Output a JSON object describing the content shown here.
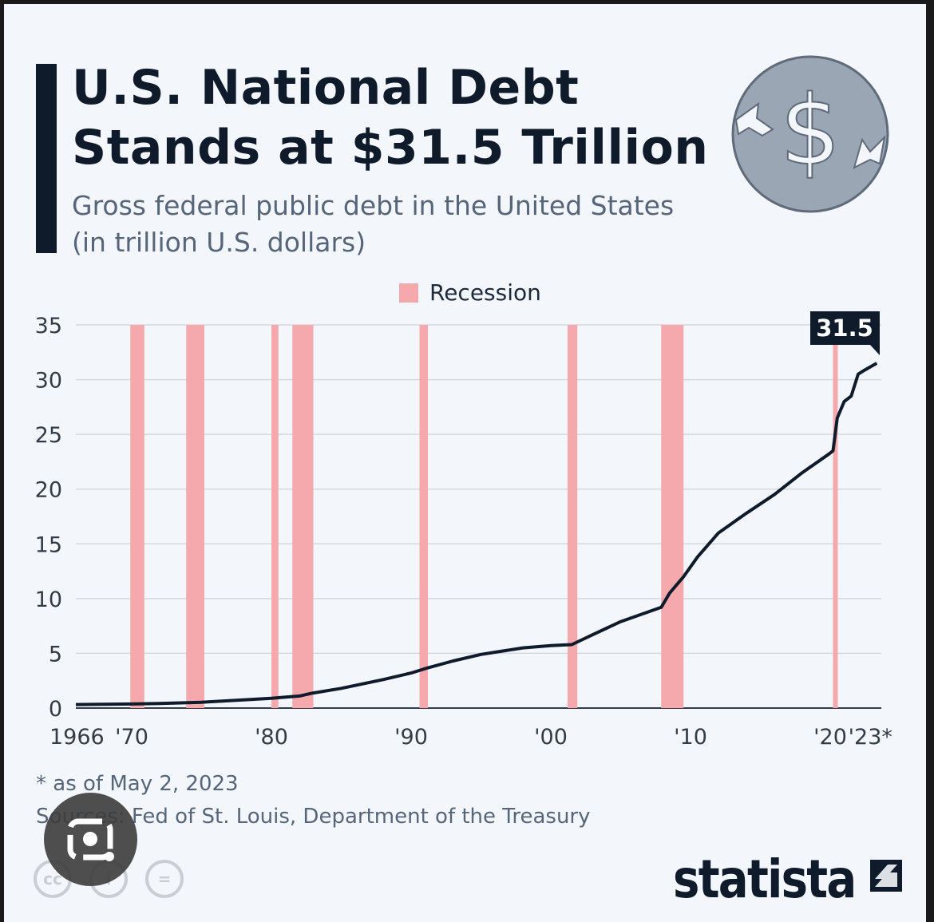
{
  "header": {
    "title_line1": "U.S. National Debt",
    "title_line2": "Stands at $31.5 Trillion",
    "subtitle_line1": "Gross federal public debt in the United States",
    "subtitle_line2": "(in trillion U.S. dollars)"
  },
  "icon": "dollar-coin-icon",
  "footer": {
    "note": "* as of May 2, 2023",
    "sources": "Sources: Fed of St. Louis, Department of the Treasury",
    "logo": "statista",
    "license_icons": [
      "cc",
      "i",
      "="
    ]
  },
  "colors": {
    "line": "#0f1a2a",
    "recession": "#f5a9ad",
    "grid": "#d4d9e0",
    "background": "#f3f6fa"
  },
  "chart_data": {
    "type": "line",
    "title": "U.S. National Debt Stands at $31.5 Trillion",
    "ylabel": "trillion U.S. dollars",
    "ylim": [
      0,
      35
    ],
    "xlim": [
      1966,
      2023.33
    ],
    "yticks": [
      "0",
      "5",
      "10",
      "15",
      "20",
      "25",
      "30",
      "35"
    ],
    "xticks": [
      {
        "year": 1966,
        "label": "1966"
      },
      {
        "year": 1970,
        "label": "'70"
      },
      {
        "year": 1980,
        "label": "'80"
      },
      {
        "year": 1990,
        "label": "'90"
      },
      {
        "year": 2000,
        "label": "'00"
      },
      {
        "year": 2010,
        "label": "'10"
      },
      {
        "year": 2020,
        "label": "'20"
      },
      {
        "year": 2023.33,
        "label": "'23*"
      }
    ],
    "legend": [
      {
        "label": "Recession",
        "position": "top-center"
      }
    ],
    "recessions": [
      [
        1969.9,
        1970.9
      ],
      [
        1973.9,
        1975.2
      ],
      [
        1980.0,
        1980.5
      ],
      [
        1981.5,
        1983.0
      ],
      [
        1990.6,
        1991.2
      ],
      [
        2001.2,
        2001.9
      ],
      [
        2007.9,
        2009.5
      ],
      [
        2020.2,
        2020.4
      ]
    ],
    "series": [
      {
        "name": "Gross federal public debt",
        "x": [
          1966,
          1968,
          1970,
          1972,
          1975,
          1978,
          1980,
          1982,
          1983,
          1985,
          1988,
          1990,
          1991,
          1993,
          1995,
          1998,
          2000,
          2001.5,
          2003,
          2005,
          2007.9,
          2008.5,
          2009.5,
          2010.5,
          2012,
          2014,
          2016,
          2018,
          2019.9,
          2020.2,
          2020.5,
          2021,
          2021.5,
          2022,
          2022.5,
          2023.33
        ],
        "values": [
          0.32,
          0.35,
          0.37,
          0.42,
          0.53,
          0.75,
          0.9,
          1.1,
          1.38,
          1.8,
          2.6,
          3.2,
          3.6,
          4.3,
          4.9,
          5.5,
          5.7,
          5.8,
          6.7,
          7.9,
          9.2,
          10.5,
          12.0,
          13.8,
          16.0,
          17.8,
          19.5,
          21.5,
          23.2,
          23.5,
          26.5,
          28.0,
          28.5,
          30.5,
          30.9,
          31.5
        ]
      }
    ],
    "annotations": [
      {
        "label": "31.5",
        "year": 2023.33,
        "value": 31.5
      }
    ]
  }
}
